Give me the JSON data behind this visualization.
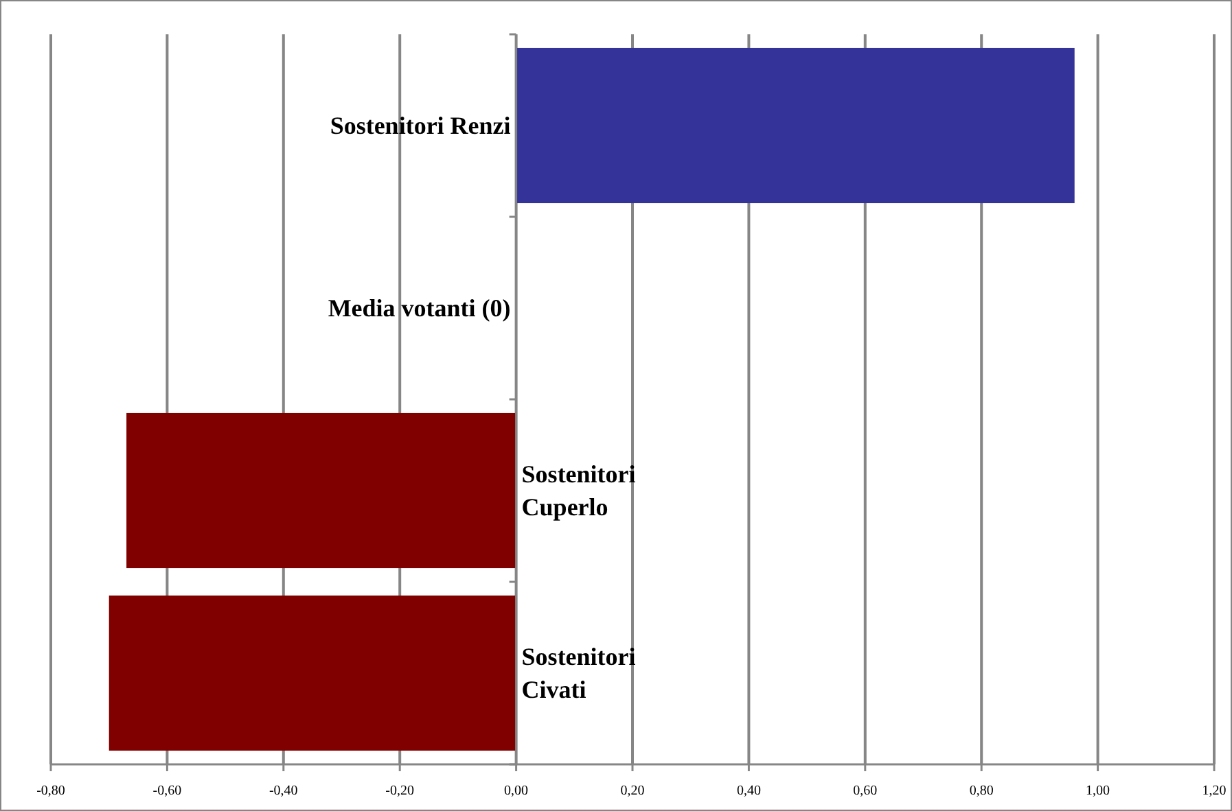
{
  "chart_data": {
    "type": "bar",
    "orientation": "horizontal",
    "categories": [
      "Sostenitori Renzi",
      "Media votanti (0)",
      "Sostenitori Cuperlo",
      "Sostenitori Civati"
    ],
    "values": [
      0.96,
      0,
      -0.67,
      -0.7
    ],
    "colors": [
      "#333399",
      "#333399",
      "#800000",
      "#800000"
    ],
    "xlim": [
      -0.8,
      1.2
    ],
    "xticks": [
      {
        "value": -0.8,
        "label": "-0,80"
      },
      {
        "value": -0.6,
        "label": "-0,60"
      },
      {
        "value": -0.4,
        "label": "-0,40"
      },
      {
        "value": -0.2,
        "label": "-0,20"
      },
      {
        "value": 0,
        "label": "0,00"
      },
      {
        "value": 0.2,
        "label": "0,20"
      },
      {
        "value": 0.4,
        "label": "0,40"
      },
      {
        "value": 0.6,
        "label": "0,60"
      },
      {
        "value": 0.8,
        "label": "0,80"
      },
      {
        "value": 1,
        "label": "1,00"
      },
      {
        "value": 1.2,
        "label": "1,20"
      }
    ],
    "grid": "x"
  }
}
